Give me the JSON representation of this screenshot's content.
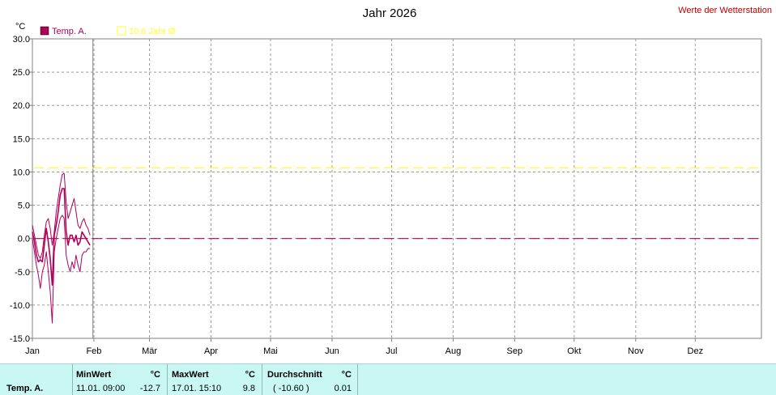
{
  "header": {
    "title": "Jahr 2026",
    "station_label": "Werte der Wetterstation"
  },
  "legend": [
    {
      "label": "Temp. A.",
      "color": "#b0005a"
    },
    {
      "label": "10.6 Jahr Ø",
      "color": "#ffff33"
    }
  ],
  "chart_data": {
    "type": "line",
    "title": "Jahr 2026",
    "ylabel": "°C",
    "ylim": [
      -15,
      30
    ],
    "yticks": [
      "30.0",
      "25.0",
      "20.0",
      "15.0",
      "10.0",
      "5.0",
      "0.0",
      "-5.0",
      "-10.0",
      "-15.0"
    ],
    "ytick_values": [
      30,
      25,
      20,
      15,
      10,
      5,
      0,
      -5,
      -10,
      -15
    ],
    "months": [
      "Jan",
      "Feb",
      "Mär",
      "Apr",
      "Mai",
      "Jun",
      "Jul",
      "Aug",
      "Sep",
      "Okt",
      "Nov",
      "Dez"
    ],
    "grid": true,
    "reference_lines": [
      {
        "name": "10.6 Jahr Ø",
        "value": 10.6,
        "color": "#ffff33"
      },
      {
        "name": "Durchschnitt",
        "value": 0.0,
        "color": "#b0005a"
      }
    ],
    "series": [
      {
        "name": "Temp. A.",
        "color": "#b0005a",
        "x": [
          1,
          2,
          3,
          4,
          5,
          6,
          7,
          8,
          9,
          10,
          11,
          12,
          13,
          14,
          15,
          16,
          17,
          18,
          19,
          20,
          21,
          22,
          23,
          24,
          25,
          26,
          27,
          28,
          29,
          30
        ],
        "max": [
          2.0,
          0.5,
          -1.0,
          -2.5,
          -3.0,
          -2.0,
          0.5,
          2.5,
          3.0,
          1.5,
          -1.0,
          1.0,
          4.0,
          6.0,
          8.0,
          9.6,
          9.8,
          5.5,
          3.0,
          4.0,
          5.0,
          6.0,
          4.0,
          2.0,
          1.5,
          2.5,
          3.0,
          2.0,
          1.5,
          0.5
        ],
        "mean": [
          1.0,
          -0.5,
          -2.5,
          -3.5,
          -3.2,
          -3.5,
          -1.0,
          1.5,
          -0.5,
          -3.0,
          -7.0,
          0.5,
          2.0,
          4.0,
          6.5,
          7.5,
          7.5,
          1.0,
          -1.0,
          0.5,
          0.5,
          -0.5,
          0.5,
          -1.0,
          -0.5,
          1.0,
          0.5,
          0.0,
          -0.5,
          -1.0
        ],
        "min": [
          0.0,
          -2.0,
          -4.0,
          -5.5,
          -7.5,
          -5.0,
          -4.0,
          -2.0,
          -5.0,
          -8.0,
          -12.7,
          -2.0,
          0.0,
          1.5,
          3.0,
          3.5,
          3.0,
          -2.5,
          -4.0,
          -5.0,
          -3.5,
          -4.5,
          -2.5,
          -4.0,
          -5.0,
          -2.5,
          -2.0,
          -2.0,
          -1.5,
          -1.5
        ]
      }
    ]
  },
  "stats": {
    "row_label": "Temp. A.",
    "min_header": "MinWert",
    "min_unit": "°C",
    "min_time": "11.01.  09:00",
    "min_value": "-12.7",
    "max_header": "MaxWert",
    "max_unit": "°C",
    "max_time": "17.01.  15:10",
    "max_value": "9.8",
    "avg_header": "Durchschnitt",
    "avg_unit": "°C",
    "avg_note": "( -10.60 )",
    "avg_value": "0.01"
  }
}
